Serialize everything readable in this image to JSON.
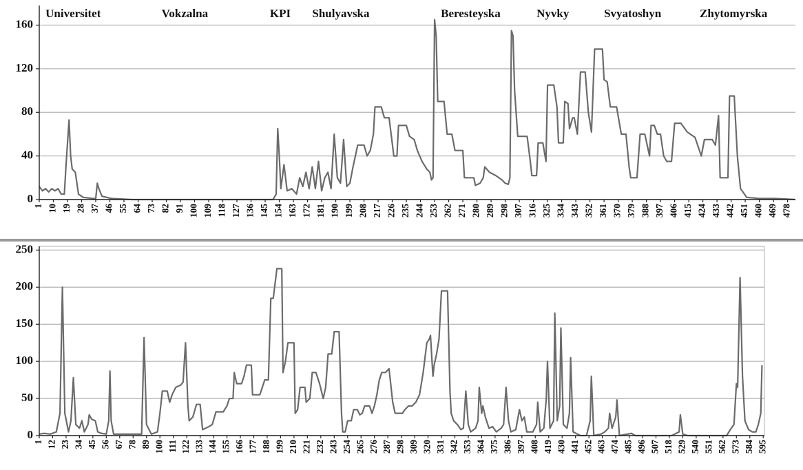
{
  "chart_data": [
    {
      "type": "line",
      "annotations": [
        {
          "text": "Universitet",
          "x": 5
        },
        {
          "text": "Vokzalna",
          "x": 79
        },
        {
          "text": "KPI",
          "x": 148
        },
        {
          "text": "Shulyavska",
          "x": 175
        },
        {
          "text": "Beresteyska",
          "x": 257
        },
        {
          "text": "Nyvky",
          "x": 318
        },
        {
          "text": "Svyatoshyn",
          "x": 361
        },
        {
          "text": "Zhytomyrska",
          "x": 422
        }
      ],
      "x": [
        1,
        3,
        5,
        7,
        9,
        11,
        13,
        15,
        17,
        18,
        20,
        21,
        22,
        24,
        26,
        29,
        35,
        37,
        38,
        39,
        41,
        47,
        60,
        150,
        152,
        153,
        154,
        155,
        157,
        159,
        162,
        165,
        167,
        169,
        171,
        173,
        175,
        177,
        179,
        181,
        183,
        185,
        187,
        189,
        191,
        193,
        195,
        197,
        199,
        201,
        204,
        208,
        210,
        212,
        214,
        215,
        219,
        221,
        224,
        227,
        229,
        230,
        235,
        237,
        240,
        242,
        245,
        248,
        250,
        251,
        252,
        253,
        254,
        255,
        259,
        261,
        264,
        266,
        271,
        272,
        278,
        279,
        282,
        284,
        285,
        288,
        292,
        296,
        298,
        300,
        301,
        302,
        303,
        304,
        306,
        312,
        314,
        315,
        318,
        319,
        322,
        324,
        325,
        329,
        331,
        332,
        335,
        336,
        338,
        339,
        341,
        342,
        344,
        346,
        349,
        351,
        353,
        355,
        360,
        361,
        363,
        365,
        369,
        372,
        375,
        377,
        378,
        382,
        384,
        387,
        390,
        391,
        393,
        395,
        397,
        399,
        401,
        404,
        406,
        410,
        414,
        419,
        423,
        425,
        430,
        432,
        434,
        435,
        440,
        441,
        444,
        446,
        448,
        452,
        460,
        470,
        483
      ],
      "values": [
        12,
        8,
        10,
        7,
        10,
        8,
        10,
        5,
        5,
        30,
        73,
        40,
        28,
        25,
        5,
        2,
        1,
        1,
        15,
        10,
        3,
        1,
        0,
        0,
        5,
        65,
        40,
        10,
        32,
        8,
        10,
        5,
        20,
        12,
        25,
        10,
        30,
        10,
        35,
        8,
        20,
        25,
        10,
        60,
        20,
        15,
        55,
        12,
        15,
        30,
        50,
        50,
        40,
        45,
        60,
        85,
        85,
        75,
        75,
        40,
        40,
        68,
        68,
        58,
        55,
        45,
        35,
        28,
        25,
        18,
        20,
        165,
        150,
        90,
        90,
        60,
        60,
        45,
        45,
        20,
        20,
        13,
        15,
        20,
        30,
        25,
        22,
        18,
        15,
        14,
        20,
        155,
        150,
        100,
        58,
        58,
        35,
        22,
        22,
        52,
        52,
        35,
        105,
        105,
        85,
        52,
        52,
        90,
        88,
        65,
        75,
        75,
        60,
        117,
        117,
        80,
        62,
        138,
        138,
        110,
        108,
        85,
        85,
        60,
        60,
        30,
        20,
        20,
        60,
        60,
        40,
        68,
        68,
        60,
        60,
        40,
        35,
        35,
        70,
        70,
        62,
        57,
        40,
        55,
        55,
        50,
        77,
        20,
        20,
        95,
        95,
        40,
        10,
        2,
        1,
        1,
        0
      ],
      "color": "#6b6b6b",
      "xlim": [
        1,
        483
      ],
      "xticks": [
        1,
        10,
        19,
        28,
        37,
        46,
        55,
        64,
        73,
        82,
        91,
        100,
        109,
        118,
        127,
        136,
        145,
        154,
        163,
        172,
        181,
        190,
        199,
        208,
        217,
        226,
        235,
        244,
        253,
        262,
        271,
        280,
        289,
        298,
        307,
        316,
        325,
        334,
        343,
        352,
        361,
        370,
        379,
        388,
        397,
        406,
        415,
        424,
        433,
        442,
        451,
        460,
        469,
        478
      ],
      "ylim": [
        0,
        178
      ],
      "yticks": [
        0,
        40,
        80,
        120,
        160
      ],
      "grid": true
    },
    {
      "type": "line",
      "x": [
        1,
        5,
        10,
        15,
        18,
        20,
        22,
        25,
        27,
        29,
        31,
        34,
        36,
        38,
        41,
        42,
        44,
        47,
        49,
        52,
        56,
        58,
        59,
        60,
        62,
        85,
        87,
        89,
        93,
        98,
        100,
        102,
        106,
        108,
        110,
        113,
        117,
        119,
        121,
        123,
        124,
        127,
        130,
        133,
        135,
        140,
        143,
        146,
        152,
        155,
        157,
        160,
        161,
        163,
        167,
        169,
        171,
        175,
        176,
        182,
        184,
        186,
        189,
        191,
        193,
        196,
        200,
        201,
        203,
        205,
        210,
        211,
        213,
        215,
        219,
        220,
        223,
        225,
        228,
        231,
        234,
        236,
        238,
        241,
        243,
        247,
        249,
        250,
        252,
        254,
        257,
        259,
        262,
        264,
        266,
        268,
        272,
        274,
        276,
        278,
        280,
        282,
        285,
        288,
        291,
        293,
        299,
        301,
        304,
        307,
        310,
        313,
        316,
        319,
        321,
        322,
        324,
        325,
        327,
        329,
        331,
        336,
        338,
        339,
        341,
        344,
        347,
        349,
        351,
        353,
        355,
        359,
        361,
        362,
        364,
        365,
        367,
        370,
        373,
        376,
        380,
        382,
        384,
        386,
        388,
        392,
        395,
        397,
        399,
        401,
        406,
        409,
        410,
        412,
        415,
        417,
        418,
        420,
        423,
        424,
        426,
        428,
        429,
        431,
        434,
        436,
        437,
        439,
        445,
        450,
        453,
        454,
        456,
        462,
        465,
        468,
        469,
        471,
        472,
        474,
        475,
        477,
        487,
        490,
        520,
        526,
        527,
        529,
        533,
        565,
        568,
        571,
        573,
        574,
        576,
        578,
        580,
        583,
        586,
        589,
        591,
        593,
        594
      ],
      "values": [
        2,
        3,
        2,
        5,
        30,
        200,
        30,
        5,
        20,
        78,
        15,
        10,
        20,
        5,
        15,
        28,
        22,
        20,
        5,
        3,
        2,
        20,
        87,
        20,
        2,
        2,
        132,
        15,
        2,
        5,
        30,
        60,
        60,
        45,
        55,
        65,
        68,
        72,
        125,
        40,
        20,
        25,
        42,
        42,
        8,
        12,
        15,
        32,
        32,
        40,
        50,
        50,
        85,
        70,
        70,
        80,
        95,
        95,
        55,
        55,
        65,
        75,
        75,
        185,
        185,
        225,
        225,
        85,
        100,
        125,
        125,
        30,
        35,
        65,
        65,
        45,
        50,
        85,
        85,
        70,
        50,
        65,
        110,
        110,
        140,
        140,
        30,
        5,
        5,
        20,
        20,
        35,
        35,
        28,
        30,
        40,
        40,
        30,
        40,
        55,
        75,
        85,
        85,
        90,
        45,
        30,
        30,
        35,
        40,
        40,
        45,
        55,
        85,
        125,
        130,
        135,
        80,
        95,
        110,
        130,
        195,
        195,
        60,
        30,
        20,
        15,
        8,
        10,
        60,
        15,
        5,
        10,
        20,
        65,
        30,
        40,
        25,
        10,
        12,
        5,
        10,
        15,
        65,
        20,
        5,
        8,
        35,
        20,
        25,
        5,
        5,
        15,
        45,
        5,
        10,
        50,
        100,
        10,
        20,
        165,
        20,
        40,
        145,
        15,
        10,
        30,
        105,
        5,
        0,
        0,
        20,
        80,
        0,
        2,
        5,
        10,
        30,
        10,
        15,
        25,
        48,
        0,
        3,
        0,
        0,
        5,
        28,
        2,
        0,
        0,
        8,
        15,
        70,
        65,
        213,
        80,
        20,
        8,
        5,
        5,
        15,
        30,
        95
      ],
      "color": "#6b6b6b",
      "xlim": [
        1,
        596
      ],
      "xticks": [
        1,
        12,
        23,
        34,
        45,
        56,
        67,
        78,
        89,
        100,
        111,
        122,
        133,
        144,
        155,
        166,
        177,
        188,
        199,
        210,
        221,
        232,
        243,
        254,
        265,
        276,
        287,
        298,
        309,
        320,
        331,
        342,
        353,
        364,
        375,
        386,
        397,
        408,
        419,
        430,
        441,
        452,
        463,
        474,
        485,
        496,
        507,
        518,
        529,
        540,
        551,
        562,
        573,
        584,
        595
      ],
      "ylim": [
        0,
        255
      ],
      "yticks": [
        0,
        50,
        100,
        150,
        200,
        250
      ],
      "grid": true
    }
  ]
}
